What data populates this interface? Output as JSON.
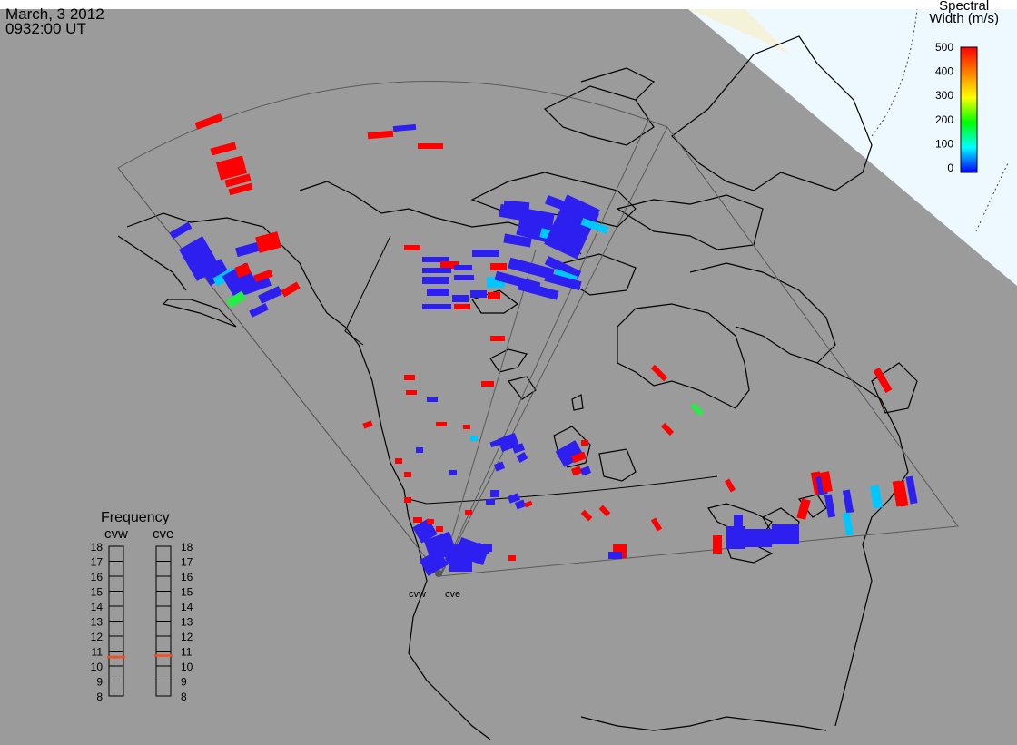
{
  "header": {
    "date": "March, 3 2012",
    "time": "0932:00 UT"
  },
  "colorbar": {
    "title_line1": "Spectral",
    "title_line2": "Width (m/s)",
    "ticks": [
      "500",
      "400",
      "300",
      "200",
      "100",
      "0"
    ],
    "colors": [
      "#ff0000",
      "#ff7f00",
      "#ffff00",
      "#00ff00",
      "#00ffff",
      "#0000ff"
    ]
  },
  "frequency": {
    "title": "Frequency",
    "radar_left": "cvw",
    "radar_right": "cve",
    "ticks": [
      "18",
      "17",
      "16",
      "15",
      "14",
      "13",
      "12",
      "11",
      "10",
      "9",
      "8"
    ],
    "value_left_mhz": 10.6,
    "value_right_mhz": 10.7,
    "marker_color": "#ff4a1a"
  },
  "radar_labels": {
    "west": "cvw",
    "east": "cve"
  },
  "colors": {
    "background": "#9b9b9b",
    "ocean_polar": "#eef8ff",
    "echo_red": "#ff0000",
    "echo_blue": "#2d1ff0",
    "echo_cyan": "#00c8ff",
    "echo_green": "#22ee44"
  }
}
